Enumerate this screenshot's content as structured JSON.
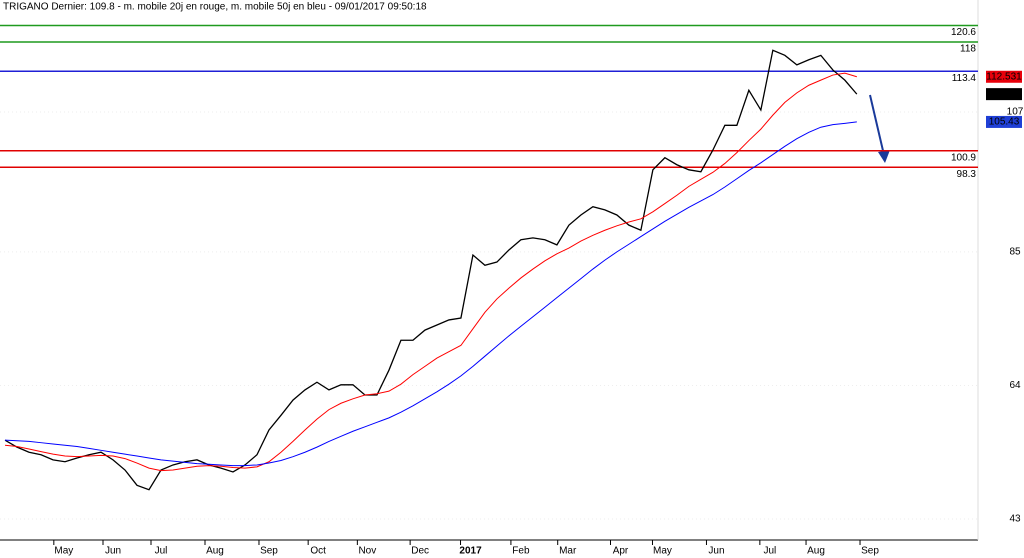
{
  "chart_data": {
    "type": "line",
    "title": "TRIGANO Dernier: 109.8 - m. mobile 20j en rouge, m. mobile 50j en bleu - 09/01/2017 09:50:18",
    "x": [
      0,
      1,
      2,
      3,
      4,
      5,
      6,
      7,
      8,
      9,
      10,
      11,
      12,
      13,
      14,
      15,
      16,
      17,
      18,
      19,
      20,
      21,
      22,
      23,
      24,
      25,
      26,
      27,
      28,
      29,
      30,
      31,
      32,
      33,
      34,
      35,
      36,
      37,
      38,
      39,
      40,
      41,
      42,
      43,
      44,
      45,
      46,
      47,
      48,
      49,
      50,
      51,
      52,
      53,
      54,
      55,
      56,
      57,
      58,
      59,
      60,
      61,
      62,
      63,
      64,
      65,
      66,
      67,
      68,
      69,
      70,
      71
    ],
    "series": [
      {
        "color": "#000000",
        "values": [
          55.4,
          54.3,
          53.5,
          53.1,
          52.3,
          52.0,
          52.6,
          53.1,
          53.5,
          52.3,
          50.7,
          48.3,
          47.6,
          50.7,
          51.5,
          52.0,
          52.3,
          51.5,
          51.0,
          50.4,
          51.5,
          53.1,
          57.0,
          59.3,
          61.7,
          63.3,
          64.5,
          63.3,
          64.1,
          64.1,
          62.5,
          62.5,
          66.4,
          71.1,
          71.1,
          72.7,
          73.5,
          74.3,
          74.6,
          84.5,
          82.9,
          83.4,
          85.3,
          86.9,
          87.2,
          86.9,
          86.1,
          89.2,
          90.8,
          92.1,
          91.6,
          90.8,
          89.2,
          88.4,
          97.9,
          99.8,
          98.7,
          97.9,
          97.6,
          101.0,
          104.9,
          104.9,
          110.4,
          107.3,
          116.7,
          115.9,
          114.4,
          115.2,
          115.9,
          113.6,
          112.0,
          109.8
        ],
        "badge": "#000000"
      },
      {
        "color": "#ff0000",
        "values": [
          54.6,
          54.4,
          54.0,
          53.6,
          53.2,
          52.9,
          52.8,
          52.9,
          53.0,
          52.9,
          52.5,
          51.8,
          51.0,
          50.6,
          50.7,
          51.0,
          51.3,
          51.4,
          51.3,
          51.1,
          51.0,
          51.2,
          52.0,
          53.5,
          55.2,
          57.0,
          58.7,
          60.2,
          61.2,
          61.9,
          62.5,
          62.7,
          63.1,
          64.2,
          65.7,
          67.0,
          68.3,
          69.3,
          70.3,
          72.9,
          75.5,
          77.6,
          79.3,
          80.9,
          82.3,
          83.6,
          84.7,
          85.6,
          86.7,
          87.6,
          88.4,
          89.1,
          89.7,
          90.2,
          91.3,
          92.6,
          93.9,
          95.3,
          96.4,
          97.5,
          98.9,
          100.6,
          102.5,
          104.3,
          106.5,
          108.5,
          110.0,
          111.2,
          112.0,
          112.8,
          113.1,
          112.531
        ],
        "badge": "#e8000b"
      },
      {
        "color": "#0000ff",
        "values": [
          55.4,
          55.3,
          55.2,
          55.0,
          54.8,
          54.6,
          54.4,
          54.1,
          53.8,
          53.5,
          53.2,
          52.9,
          52.6,
          52.3,
          52.1,
          51.9,
          51.7,
          51.6,
          51.5,
          51.4,
          51.4,
          51.5,
          51.8,
          52.2,
          52.8,
          53.5,
          54.3,
          55.2,
          56.0,
          56.8,
          57.5,
          58.2,
          58.9,
          59.8,
          60.8,
          61.9,
          63.0,
          64.2,
          65.5,
          67.0,
          68.6,
          70.2,
          71.8,
          73.3,
          74.8,
          76.3,
          77.8,
          79.3,
          80.8,
          82.3,
          83.7,
          85.0,
          86.2,
          87.4,
          88.6,
          89.8,
          90.9,
          92.0,
          93.0,
          94.0,
          95.2,
          96.5,
          97.8,
          99.0,
          100.3,
          101.6,
          102.8,
          103.8,
          104.6,
          105.0,
          105.2,
          105.43
        ],
        "badge": "#1f3fd6"
      }
    ],
    "hlines": [
      {
        "value": 120.6,
        "color": "#1f9a1f"
      },
      {
        "value": 118,
        "color": "#1f9a1f"
      },
      {
        "value": 113.4,
        "color": "#1f1fd6"
      },
      {
        "value": 100.9,
        "color": "#e00000"
      },
      {
        "value": 98.3,
        "color": "#e00000"
      }
    ],
    "xlim": [
      -0.42,
      81.1
    ],
    "xticks": [
      {
        "value": 4.9,
        "label": "May"
      },
      {
        "value": 9.0,
        "label": "Jun"
      },
      {
        "value": 13.0,
        "label": "Jul"
      },
      {
        "value": 17.5,
        "label": "Aug"
      },
      {
        "value": 22.0,
        "label": "Sep"
      },
      {
        "value": 26.1,
        "label": "Oct"
      },
      {
        "value": 30.2,
        "label": "Nov"
      },
      {
        "value": 34.6,
        "label": "Dec"
      },
      {
        "value": 38.8,
        "label": "2017"
      },
      {
        "value": 43.0,
        "label": "Feb"
      },
      {
        "value": 46.9,
        "label": "Mar"
      },
      {
        "value": 51.3,
        "label": "Apr"
      },
      {
        "value": 54.8,
        "label": "May"
      },
      {
        "value": 59.3,
        "label": "Jun"
      },
      {
        "value": 63.75,
        "label": "Jul"
      },
      {
        "value": 67.6,
        "label": "Aug"
      },
      {
        "value": 72.1,
        "label": "Sep"
      }
    ],
    "ylim": [
      39.7,
      124.6
    ],
    "yticks": [
      43,
      64,
      85,
      107
    ],
    "grid": true
  }
}
